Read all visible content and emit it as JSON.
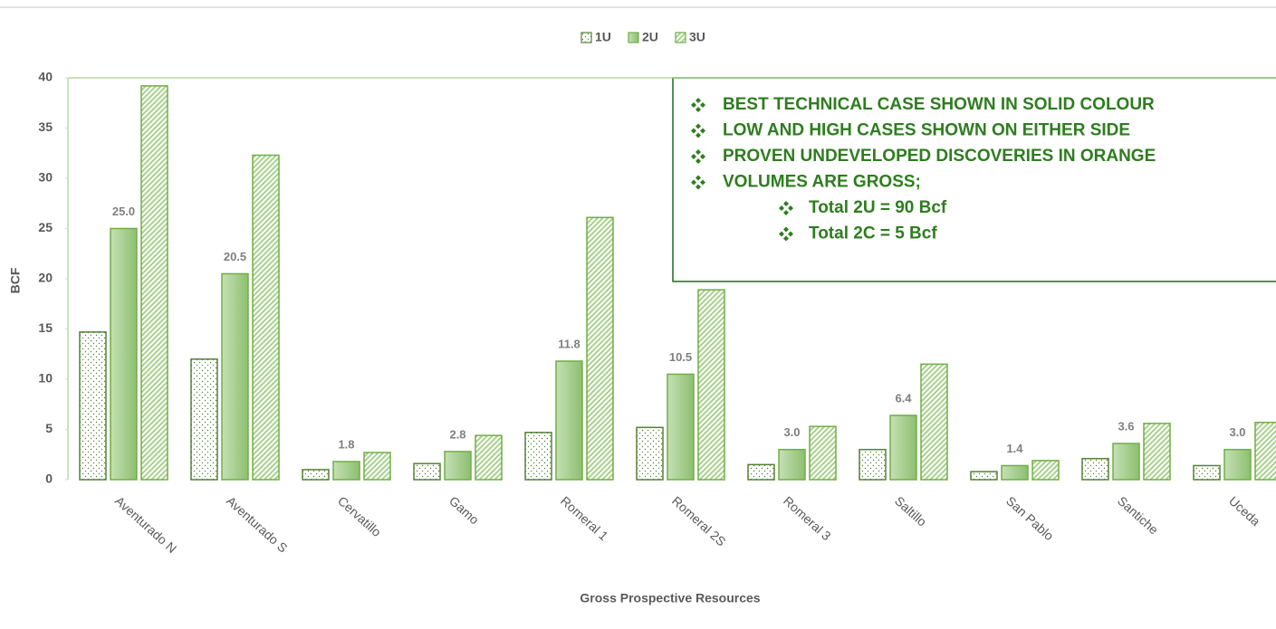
{
  "chart_data": {
    "type": "bar",
    "categories": [
      "Aventurado N",
      "Aventurado S",
      "Cervatillo",
      "Gamo",
      "Romeral 1",
      "Romeral 2S",
      "Romeral 3",
      "Saltillo",
      "San Pablo",
      "Santiche",
      "Uceda"
    ],
    "series": [
      {
        "name": "1U",
        "color": "#548235",
        "pattern": "dots",
        "values": [
          14.7,
          12.0,
          1.0,
          1.6,
          4.7,
          5.2,
          1.5,
          3.0,
          0.8,
          2.1,
          1.4
        ]
      },
      {
        "name": "2U",
        "color": "#a9d18e",
        "pattern": "solid",
        "values": [
          25.0,
          20.5,
          1.8,
          2.8,
          11.8,
          10.5,
          3.0,
          6.4,
          1.4,
          3.6,
          3.0
        ],
        "value_labels": [
          "25.0",
          "20.5",
          "1.8",
          "2.8",
          "11.8",
          "10.5",
          "3.0",
          "6.4",
          "1.4",
          "3.6",
          "3.0"
        ]
      },
      {
        "name": "3U",
        "color": "#a9d18e",
        "pattern": "hatch",
        "values": [
          39.2,
          32.3,
          2.7,
          4.4,
          26.1,
          18.9,
          5.3,
          11.5,
          1.9,
          5.6,
          5.7
        ]
      }
    ],
    "ylim": [
      0,
      40
    ],
    "yticks": [
      0,
      5,
      10,
      15,
      20,
      25,
      30,
      35,
      40
    ],
    "y_label": "BCF",
    "x_label": "Gross Prospective Resources",
    "legend": "top",
    "annotations": [
      "BEST TECHNICAL CASE SHOWN IN SOLID COLOUR",
      "LOW AND HIGH CASES SHOWN ON EITHER SIDE",
      "PROVEN UNDEVELOPED DISCOVERIES IN ORANGE",
      "VOLUMES ARE GROSS;"
    ],
    "annotation_subitems": [
      "Total 2U = 90 Bcf",
      "Total 2C = 5 Bcf"
    ]
  }
}
